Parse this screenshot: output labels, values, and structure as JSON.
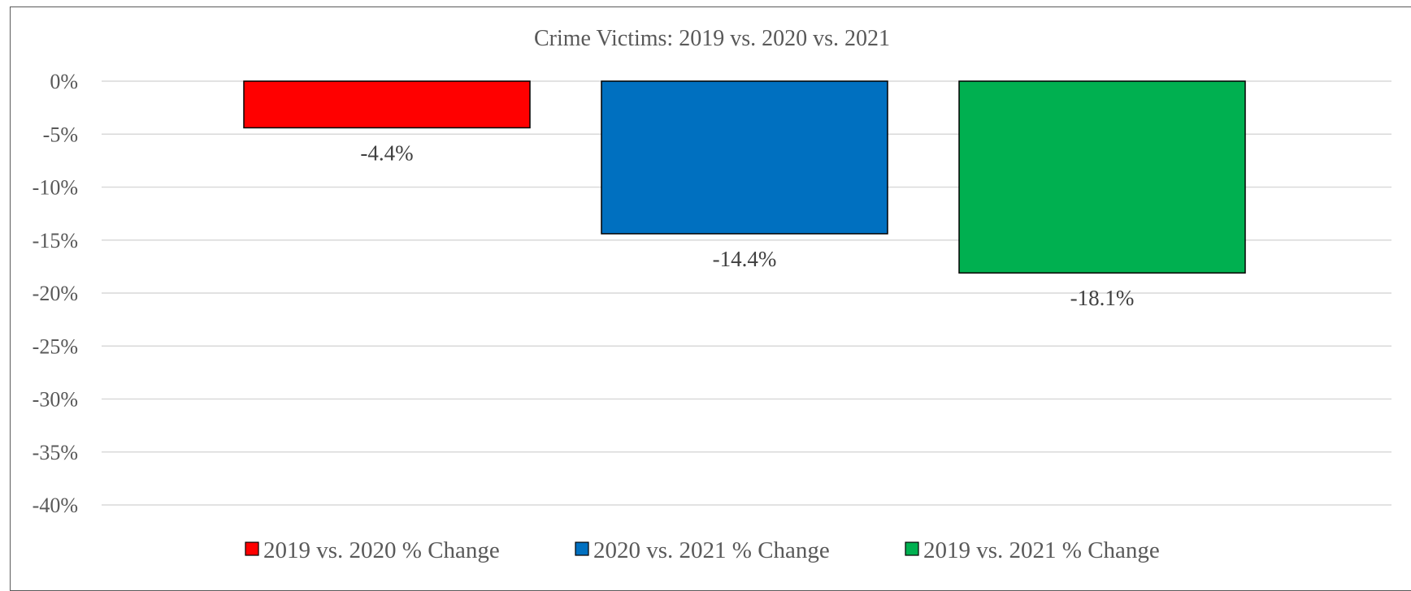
{
  "chart_data": {
    "type": "bar",
    "title": "Crime Victims: 2019 vs. 2020 vs. 2021",
    "xlabel": "",
    "ylabel": "",
    "ylim": [
      -40,
      0
    ],
    "yticks": [
      0,
      -5,
      -10,
      -15,
      -20,
      -25,
      -30,
      -35,
      -40
    ],
    "ytick_labels": [
      "0%",
      "-5%",
      "-10%",
      "-15%",
      "-20%",
      "-25%",
      "-30%",
      "-35%",
      "-40%"
    ],
    "grid": true,
    "legend_position": "bottom",
    "series": [
      {
        "name": "2019 vs. 2020 % Change",
        "value": -4.4,
        "label": "-4.4%",
        "color": "#ff0000"
      },
      {
        "name": "2020 vs. 2021 % Change",
        "value": -14.4,
        "label": "-14.4%",
        "color": "#0070c0"
      },
      {
        "name": "2019 vs. 2021 % Change",
        "value": -18.1,
        "label": "-18.1%",
        "color": "#00b050"
      }
    ]
  }
}
